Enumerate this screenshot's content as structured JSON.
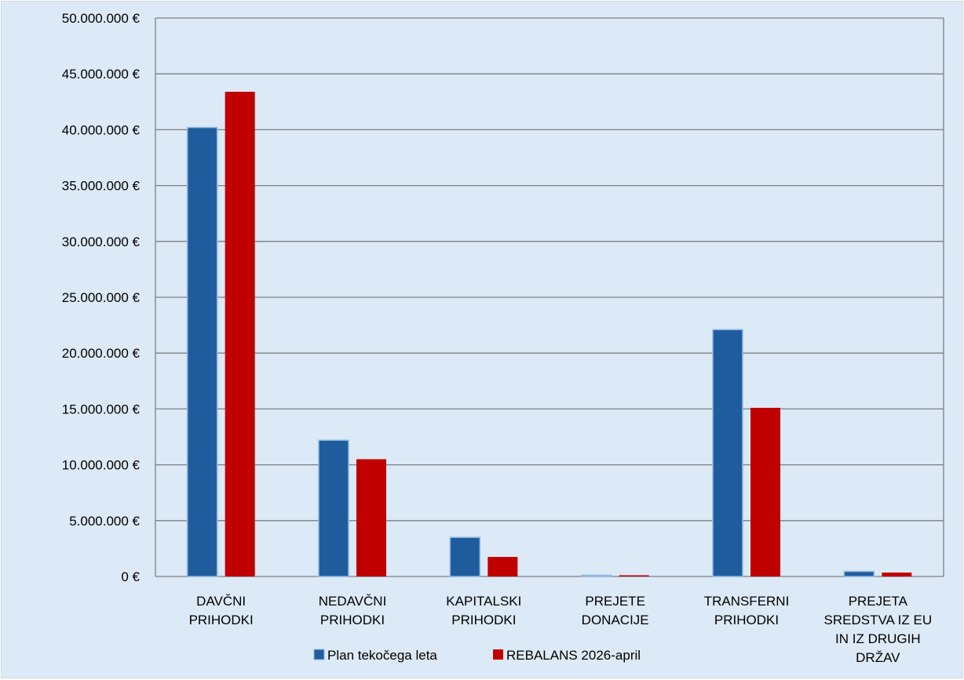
{
  "colors": {
    "background": "#dce9f6",
    "gridline": "#7f7f7f",
    "series1": "#1f5c9e",
    "series1_edge": "#8fb9e3",
    "series2": "#c00000"
  },
  "chart_data": {
    "type": "bar",
    "title": "",
    "xlabel": "",
    "ylabel": "",
    "ylim": [
      0,
      50000000
    ],
    "ytick_step": 5000000,
    "yticks": [
      "0 €",
      "5.000.000 €",
      "10.000.000 €",
      "15.000.000 €",
      "20.000.000 €",
      "25.000.000 €",
      "30.000.000 €",
      "35.000.000 €",
      "40.000.000 €",
      "45.000.000 €",
      "50.000.000 €"
    ],
    "grid": true,
    "legend_position": "bottom",
    "categories": [
      [
        "DAVČNI",
        "PRIHODKI"
      ],
      [
        "NEDAVČNI",
        "PRIHODKI"
      ],
      [
        "KAPITALSKI",
        "PRIHODKI"
      ],
      [
        "PREJETE",
        "DONACIJE"
      ],
      [
        "TRANSFERNI",
        "PRIHODKI"
      ],
      [
        "PREJETA",
        "SREDSTVA IZ EU",
        "IN IZ DRUGIH",
        "DRŽAV"
      ]
    ],
    "series": [
      {
        "name": "Plan tekočega leta",
        "values": [
          40200000,
          12200000,
          3500000,
          100000,
          22100000,
          450000
        ]
      },
      {
        "name": "REBALANS 2026-april",
        "values": [
          43400000,
          10500000,
          1750000,
          50000,
          15100000,
          350000
        ]
      }
    ]
  }
}
